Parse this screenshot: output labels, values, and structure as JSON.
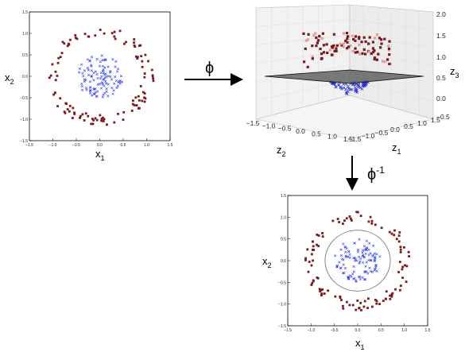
{
  "arrows": {
    "phi": {
      "symbol": "ϕ"
    },
    "phi_inv": {
      "symbol": "ϕ",
      "superscript": "-1"
    }
  },
  "chart_data": [
    {
      "id": "left",
      "type": "scatter",
      "x_label": {
        "base": "x",
        "sub": "1"
      },
      "y_label": {
        "base": "x",
        "sub": "2"
      },
      "x_ticks": [
        "−1.5",
        "−1.0",
        "−0.5",
        "0.0",
        "0.5",
        "1.0",
        "1.5"
      ],
      "y_ticks": [
        "1.5",
        "1.0",
        "0.5",
        "0.0",
        "−0.5",
        "−1.0",
        "−1.5"
      ],
      "xlim": [
        -1.5,
        1.5
      ],
      "ylim": [
        -1.5,
        1.5
      ],
      "series": [
        {
          "marker": "square",
          "color": "#7a1a1a",
          "ring": {
            "r_min": 0.9,
            "r_max": 1.15,
            "n": 110
          }
        },
        {
          "marker": "x",
          "color": "#3040e0",
          "disk": {
            "r_max": 0.5,
            "n": 110
          }
        }
      ]
    },
    {
      "id": "3d",
      "type": "scatter3d",
      "x_label": {
        "base": "z",
        "sub": "2"
      },
      "y_label": {
        "base": "z",
        "sub": "1"
      },
      "z_label": {
        "base": "z",
        "sub": "3"
      },
      "z_ticks": [
        "2.0",
        "1.5",
        "1.0",
        "0.5",
        "0.0",
        "−0.5"
      ],
      "z2_ticks": [
        "−1.5",
        "−1.0",
        "−0.5",
        "0.0",
        "0.5",
        "1.0",
        "1.5"
      ],
      "z1_ticks": [
        "−1.5",
        "−1.0",
        "−0.5",
        "0.0",
        "0.5",
        "1.0",
        "1.5"
      ],
      "plane_z": 0.5,
      "series": [
        {
          "marker": "square",
          "color": "#7a1a1a"
        },
        {
          "marker": "x",
          "color": "#2030d0"
        }
      ]
    },
    {
      "id": "bottom",
      "type": "scatter",
      "x_label": {
        "base": "x",
        "sub": "1"
      },
      "y_label": {
        "base": "x",
        "sub": "2"
      },
      "x_ticks": [
        "−1.5",
        "−1.0",
        "−0.5",
        "0.0",
        "0.5",
        "1.0",
        "1.5"
      ],
      "y_ticks": [
        "1.5",
        "1.0",
        "0.5",
        "0.0",
        "−0.5",
        "−1.0",
        "−1.5"
      ],
      "xlim": [
        -1.5,
        1.5
      ],
      "ylim": [
        -1.5,
        1.5
      ],
      "decision_circle_r": 0.7,
      "series": [
        {
          "marker": "square",
          "color": "#7a1a1a",
          "ring": {
            "r_min": 0.9,
            "r_max": 1.15,
            "n": 110
          }
        },
        {
          "marker": "x",
          "color": "#3040e0",
          "disk": {
            "r_max": 0.5,
            "n": 110
          }
        }
      ]
    }
  ]
}
